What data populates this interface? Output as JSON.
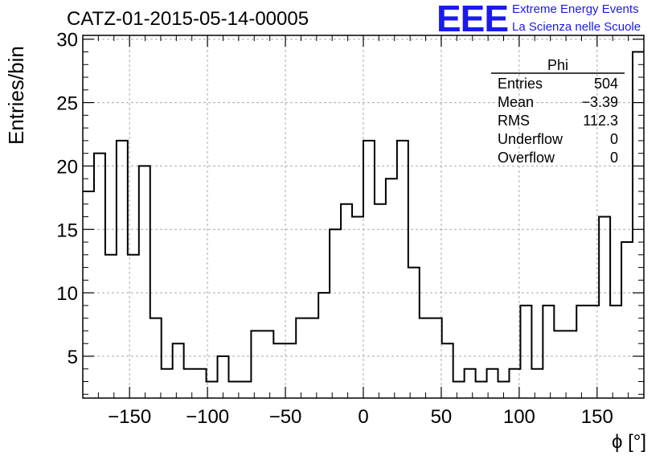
{
  "title": "CATZ-01-2015-05-14-00005",
  "logo": {
    "mark": "EEE",
    "line1": "Extreme Energy Events",
    "line2": "La Scienza nelle Scuole",
    "color": "#1a1aee"
  },
  "stats": {
    "name": "Phi",
    "rows": [
      {
        "label": "Entries",
        "value": "504"
      },
      {
        "label": "Mean",
        "value": "−3.39"
      },
      {
        "label": "RMS",
        "value": "112.3"
      },
      {
        "label": "Underflow",
        "value": "0"
      },
      {
        "label": "Overflow",
        "value": "0"
      }
    ]
  },
  "chart_data": {
    "type": "bar",
    "style": "step-histogram",
    "xlabel": "ϕ [°]",
    "ylabel": "Entries/bin",
    "xlim": [
      -180,
      180
    ],
    "ylim": [
      1.7,
      30.3
    ],
    "bin_width": 7.2,
    "x_ticks": [
      -150,
      -100,
      -50,
      0,
      50,
      100,
      150
    ],
    "y_ticks": [
      5,
      10,
      15,
      20,
      25,
      30
    ],
    "grid": true,
    "bin_edges_start": -180,
    "values": [
      18,
      21,
      13,
      22,
      13,
      20,
      8,
      4,
      6,
      4,
      4,
      3,
      5,
      3,
      3,
      7,
      7,
      6,
      6,
      8,
      8,
      10,
      15,
      17,
      16,
      22,
      17,
      19,
      22,
      12,
      8,
      8,
      6,
      3,
      4,
      3,
      4,
      3,
      4,
      9,
      4,
      9,
      7,
      7,
      9,
      9,
      16,
      9,
      14,
      29
    ]
  }
}
